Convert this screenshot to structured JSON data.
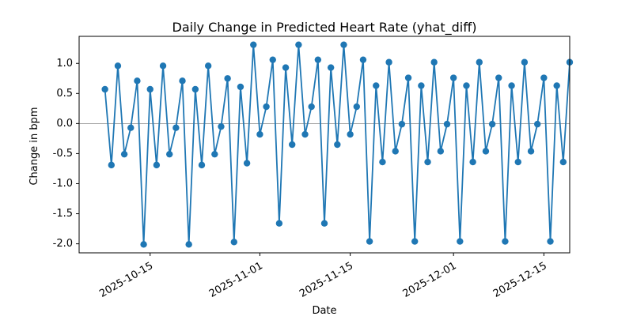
{
  "chart_data": {
    "type": "line",
    "title": "Daily Change in Predicted Heart Rate (yhat_diff)",
    "xlabel": "Date",
    "ylabel": "Change in bpm",
    "xlim": [
      "2025-10-04",
      "2025-12-19"
    ],
    "ylim": [
      -2.15,
      1.45
    ],
    "x_ticks": [
      "2025-10-15",
      "2025-11-01",
      "2025-11-15",
      "2025-12-01",
      "2025-12-15"
    ],
    "y_ticks": [
      "1.0",
      "0.5",
      "0.0",
      "-0.5",
      "-1.0",
      "-1.5",
      "-2.0"
    ],
    "reference_line": 0.0,
    "grid": false,
    "legend": "none",
    "x_tick_rotation_deg": 30,
    "series_color": "#1f77b4",
    "reference_line_color": "#808080",
    "series": [
      {
        "x_start": "2025-10-08",
        "step_days": 1,
        "values": [
          0.57,
          -0.69,
          0.96,
          -0.51,
          -0.07,
          0.71,
          -2.01,
          0.57,
          -0.69,
          0.96,
          -0.51,
          -0.07,
          0.71,
          -2.01,
          0.57,
          -0.69,
          0.96,
          -0.51,
          -0.05,
          0.75,
          -1.97,
          0.61,
          -0.66,
          1.31,
          -0.18,
          0.28,
          1.06,
          -1.66,
          0.93,
          -0.35,
          1.31,
          -0.18,
          0.28,
          1.06,
          -1.66,
          0.93,
          -0.35,
          1.31,
          -0.18,
          0.28,
          1.06,
          -1.96,
          0.63,
          -0.64,
          1.02,
          -0.46,
          -0.01,
          0.76,
          -1.96,
          0.63,
          -0.64,
          1.02,
          -0.46,
          -0.01,
          0.76,
          -1.96,
          0.63,
          -0.64,
          1.02,
          -0.46,
          -0.01,
          0.76,
          -1.96,
          0.63,
          -0.64,
          1.02,
          -0.46,
          -0.01,
          0.76,
          -1.96,
          0.63,
          -0.64,
          1.02
        ]
      }
    ]
  }
}
